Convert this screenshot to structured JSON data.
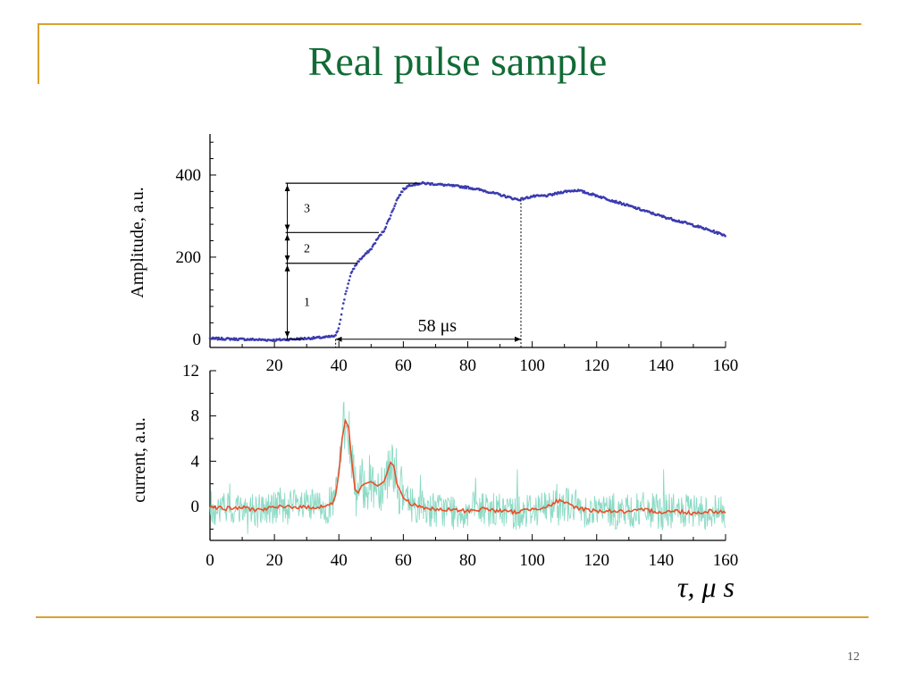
{
  "slide": {
    "title": "Real pulse sample",
    "page_number": "12"
  },
  "colors": {
    "frame": "#d7a22e",
    "title": "#116b35",
    "amplitude_trace": "#3b3bb0",
    "raw_current": "#7fd6bf",
    "smoothed_current": "#e8502a"
  },
  "chart_data": [
    {
      "type": "scatter",
      "ylabel": "Amplitude, a.u.",
      "xlim": [
        0,
        160
      ],
      "ylim": [
        -20,
        500
      ],
      "xticks": [
        20,
        40,
        60,
        80,
        100,
        120,
        140,
        160
      ],
      "yticks": [
        0,
        200,
        400
      ],
      "series": [
        {
          "x": [
            0,
            10,
            20,
            30,
            36,
            39,
            40,
            42,
            44,
            46,
            48,
            50,
            52,
            54,
            56,
            58,
            60,
            62,
            66,
            70,
            75,
            80,
            85,
            90,
            94,
            96,
            100,
            105,
            110,
            114,
            120,
            130,
            140,
            150,
            160
          ],
          "y": [
            2,
            0,
            -2,
            2,
            5,
            8,
            30,
            110,
            165,
            190,
            205,
            220,
            245,
            265,
            300,
            340,
            365,
            376,
            380,
            378,
            374,
            370,
            362,
            352,
            343,
            340,
            348,
            350,
            360,
            363,
            350,
            325,
            300,
            278,
            253
          ]
        }
      ],
      "annotations": [
        {
          "type": "vertical-arrow",
          "x": 24,
          "y_from": 0,
          "y_to": 380,
          "segments": [
            {
              "label": "1",
              "from": 0,
              "to": 185
            },
            {
              "label": "2",
              "from": 185,
              "to": 260
            },
            {
              "label": "3",
              "from": 260,
              "to": 380
            }
          ]
        },
        {
          "type": "horizontal-arrow",
          "x_from": 39,
          "x_to": 96.5,
          "y": 0,
          "label": "58 μs"
        },
        {
          "type": "dotted-line",
          "x": 39
        },
        {
          "type": "dotted-line",
          "x": 96.5
        }
      ]
    },
    {
      "type": "line",
      "ylabel": "current, a.u.",
      "xlabel": "τ,  μ s",
      "xlim": [
        0,
        160
      ],
      "ylim": [
        -3,
        12
      ],
      "xticks": [
        0,
        20,
        40,
        60,
        80,
        100,
        120,
        140,
        160
      ],
      "yticks": [
        0,
        4,
        8,
        12
      ],
      "series": [
        {
          "x": [
            0,
            5,
            10,
            15,
            20,
            25,
            30,
            35,
            38,
            39,
            40,
            41,
            42,
            43,
            44,
            45,
            46,
            47,
            48,
            50,
            52,
            54,
            55,
            56,
            57,
            58,
            60,
            62,
            65,
            70,
            75,
            80,
            85,
            90,
            95,
            100,
            105,
            108,
            110,
            115,
            120,
            125,
            130,
            135,
            140,
            145,
            150,
            155,
            160
          ],
          "y": [
            0,
            -0.2,
            -0.1,
            -0.3,
            -0.1,
            0,
            -0.1,
            0,
            0.2,
            1,
            3,
            6,
            7.6,
            7,
            4,
            1.5,
            1.2,
            1.8,
            2,
            2.2,
            1.8,
            2.2,
            3,
            3.9,
            3.6,
            2,
            0.8,
            0.3,
            0,
            -0.3,
            -0.3,
            -0.4,
            -0.2,
            -0.4,
            -0.5,
            -0.2,
            0,
            0.5,
            0.3,
            -0.2,
            -0.4,
            -0.4,
            -0.5,
            -0.3,
            -0.5,
            -0.4,
            -0.6,
            -0.4,
            -0.5
          ]
        }
      ]
    }
  ]
}
